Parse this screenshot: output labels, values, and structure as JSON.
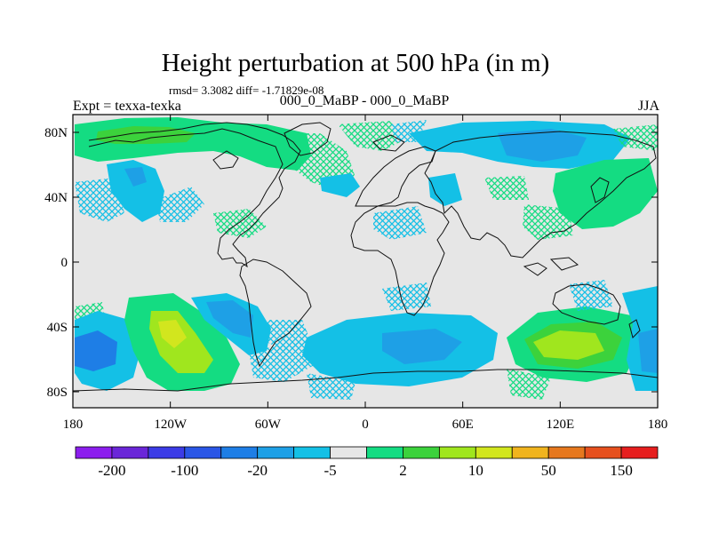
{
  "title": "Height perturbation at 500 hPa (in m)",
  "stats": "rmsd= 3.3082 diff= -1.71829e-08",
  "left_label": "Expt = texxa-texka",
  "center_label": "000_0_MaBP - 000_0_MaBP",
  "right_label": "JJA",
  "lat_ticks": [
    {
      "value": 80,
      "label": "80N"
    },
    {
      "value": 40,
      "label": "40N"
    },
    {
      "value": 0,
      "label": "0"
    },
    {
      "value": -40,
      "label": "40S"
    },
    {
      "value": -80,
      "label": "80S"
    }
  ],
  "lon_ticks": [
    {
      "value": -180,
      "label": "180"
    },
    {
      "value": -120,
      "label": "120W"
    },
    {
      "value": -60,
      "label": "60W"
    },
    {
      "value": 0,
      "label": "0"
    },
    {
      "value": 60,
      "label": "60E"
    },
    {
      "value": 120,
      "label": "120E"
    },
    {
      "value": 180,
      "label": "180"
    }
  ],
  "colorbar": {
    "colors": [
      "#8c1eee",
      "#6a26d8",
      "#3c3ce6",
      "#2a56e6",
      "#1e7ee6",
      "#1ea0e6",
      "#14c0e6",
      "#e6e6e6",
      "#14dc82",
      "#3cd23c",
      "#a0e61e",
      "#d2e61e",
      "#f0b41e",
      "#e6781e",
      "#e6501e",
      "#e61e1e"
    ],
    "labels": [
      {
        "after_box": 1,
        "text": "-200"
      },
      {
        "after_box": 3,
        "text": "-100"
      },
      {
        "after_box": 5,
        "text": "-20"
      },
      {
        "after_box": 7,
        "text": "-5"
      },
      {
        "after_box": 9,
        "text": "2"
      },
      {
        "after_box": 11,
        "text": "10"
      },
      {
        "after_box": 13,
        "text": "50"
      },
      {
        "after_box": 15,
        "text": "150"
      }
    ]
  },
  "anomalies": [
    {
      "lon": -95,
      "lat": 72,
      "category": "positive_weak"
    },
    {
      "lon": -140,
      "lat": 37,
      "category": "negative_moderate"
    },
    {
      "lon": -155,
      "lat": -57,
      "category": "negative_strong"
    },
    {
      "lon": -120,
      "lat": -52,
      "category": "positive_strong"
    },
    {
      "lon": -35,
      "lat": -45,
      "category": "negative_moderate"
    },
    {
      "lon": 40,
      "lat": -55,
      "category": "negative_moderate"
    },
    {
      "lon": 100,
      "lat": -52,
      "category": "positive_strong"
    },
    {
      "lon": 170,
      "lat": -55,
      "category": "negative_moderate"
    },
    {
      "lon": 90,
      "lat": 72,
      "category": "negative_moderate"
    },
    {
      "lon": 125,
      "lat": 42,
      "category": "positive_weak"
    },
    {
      "lon": 0,
      "lat": 46,
      "category": "negative_moderate"
    }
  ]
}
